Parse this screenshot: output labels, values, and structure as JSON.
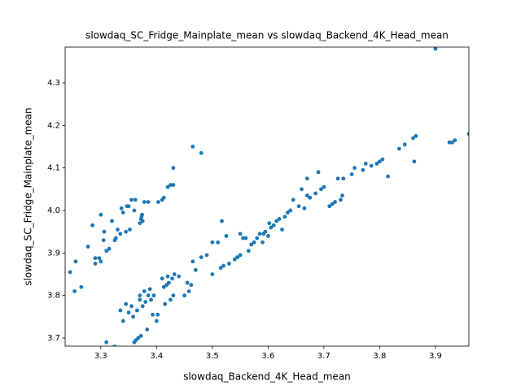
{
  "chart_data": {
    "type": "scatter",
    "title": "slowdaq_SC_Fridge_Mainplate_mean vs slowdaq_Backend_4K_Head_mean",
    "x_label": "slowdaq_Backend_4K_Head_mean",
    "y_label": "slowdaq_SC_Fridge_Mainplate_mean",
    "color": "#1f77b4",
    "x": [
      3.245,
      3.255,
      3.253,
      3.265,
      3.277,
      3.285,
      3.29,
      3.29,
      3.297,
      3.3,
      3.3,
      3.305,
      3.306,
      3.31,
      3.315,
      3.32,
      3.325,
      3.327,
      3.33,
      3.335,
      3.337,
      3.34,
      3.345,
      3.347,
      3.35,
      3.352,
      3.355,
      3.36,
      3.362,
      3.37,
      3.372,
      3.373,
      3.374,
      3.375,
      3.378,
      3.385,
      3.403,
      3.41,
      3.413,
      3.42,
      3.425,
      3.43,
      3.43,
      3.465,
      3.48,
      3.31,
      3.325,
      3.335,
      3.34,
      3.345,
      3.35,
      3.355,
      3.358,
      3.36,
      3.363,
      3.365,
      3.367,
      3.37,
      3.37,
      3.372,
      3.375,
      3.378,
      3.38,
      3.383,
      3.385,
      3.388,
      3.39,
      3.393,
      3.395,
      3.4,
      3.402,
      3.41,
      3.413,
      3.415,
      3.418,
      3.42,
      3.422,
      3.425,
      3.428,
      3.43,
      3.432,
      3.44,
      3.45,
      3.455,
      3.458,
      3.462,
      3.465,
      3.47,
      3.48,
      3.49,
      3.5,
      3.5,
      3.51,
      3.515,
      3.517,
      3.52,
      3.525,
      3.53,
      3.54,
      3.545,
      3.55,
      3.55,
      3.555,
      3.56,
      3.565,
      3.57,
      3.575,
      3.58,
      3.585,
      3.59,
      3.592,
      3.595,
      3.6,
      3.602,
      3.605,
      3.61,
      3.615,
      3.62,
      3.625,
      3.63,
      3.635,
      3.64,
      3.645,
      3.655,
      3.66,
      3.665,
      3.67,
      3.67,
      3.675,
      3.685,
      3.69,
      3.695,
      3.7,
      3.71,
      3.715,
      3.72,
      3.725,
      3.73,
      3.733,
      3.735,
      3.75,
      3.755,
      3.77,
      3.775,
      3.785,
      3.795,
      3.8,
      3.805,
      3.815,
      3.835,
      3.845,
      3.86,
      3.862,
      3.865,
      3.9,
      3.925,
      3.93,
      3.935,
      3.96
    ],
    "values": [
      3.855,
      3.88,
      3.81,
      3.82,
      3.915,
      3.965,
      3.875,
      3.888,
      3.888,
      3.99,
      3.88,
      3.93,
      3.95,
      3.905,
      3.91,
      3.975,
      3.93,
      3.935,
      3.955,
      3.945,
      4.005,
      3.995,
      3.95,
      4.01,
      4.01,
      3.955,
      4.025,
      4.0,
      4.025,
      3.97,
      3.98,
      3.985,
      3.99,
      3.975,
      4.02,
      4.02,
      4.02,
      4.025,
      4.03,
      4.055,
      4.06,
      4.1,
      4.06,
      4.15,
      4.135,
      3.69,
      3.68,
      3.765,
      3.74,
      3.78,
      3.76,
      3.775,
      3.75,
      3.69,
      3.695,
      3.765,
      3.7,
      3.79,
      3.8,
      3.705,
      3.775,
      3.81,
      3.785,
      3.72,
      3.8,
      3.815,
      3.79,
      3.755,
      3.8,
      3.74,
      3.755,
      3.84,
      3.82,
      3.78,
      3.825,
      3.845,
      3.83,
      3.79,
      3.84,
      3.8,
      3.85,
      3.845,
      3.8,
      3.83,
      3.81,
      3.825,
      3.88,
      3.86,
      3.89,
      3.895,
      3.85,
      3.925,
      3.925,
      3.865,
      3.975,
      3.87,
      3.94,
      3.875,
      3.885,
      3.89,
      3.895,
      3.945,
      3.935,
      3.935,
      3.905,
      3.92,
      3.925,
      3.935,
      3.945,
      3.925,
      3.945,
      3.95,
      3.94,
      3.97,
      3.96,
      3.965,
      3.975,
      3.98,
      3.955,
      3.985,
      3.995,
      4.0,
      4.025,
      4.01,
      4.05,
      4.005,
      4.035,
      4.075,
      4.03,
      4.04,
      4.09,
      4.05,
      4.055,
      4.01,
      4.015,
      4.02,
      4.075,
      4.025,
      4.035,
      4.075,
      4.085,
      4.1,
      4.095,
      4.11,
      4.105,
      4.11,
      4.115,
      4.12,
      4.08,
      4.145,
      4.155,
      4.17,
      4.115,
      4.175,
      4.38,
      4.16,
      4.16,
      4.165,
      4.18
    ],
    "xlim": [
      3.236,
      3.96
    ],
    "ylim": [
      3.681,
      4.384
    ],
    "xticks": [
      3.3,
      3.4,
      3.5,
      3.6,
      3.7,
      3.8,
      3.9
    ],
    "yticks": [
      3.7,
      3.8,
      3.9,
      {
        "value": 4.0,
        "label": "4.0"
      },
      4.1,
      4.2,
      4.3
    ]
  }
}
